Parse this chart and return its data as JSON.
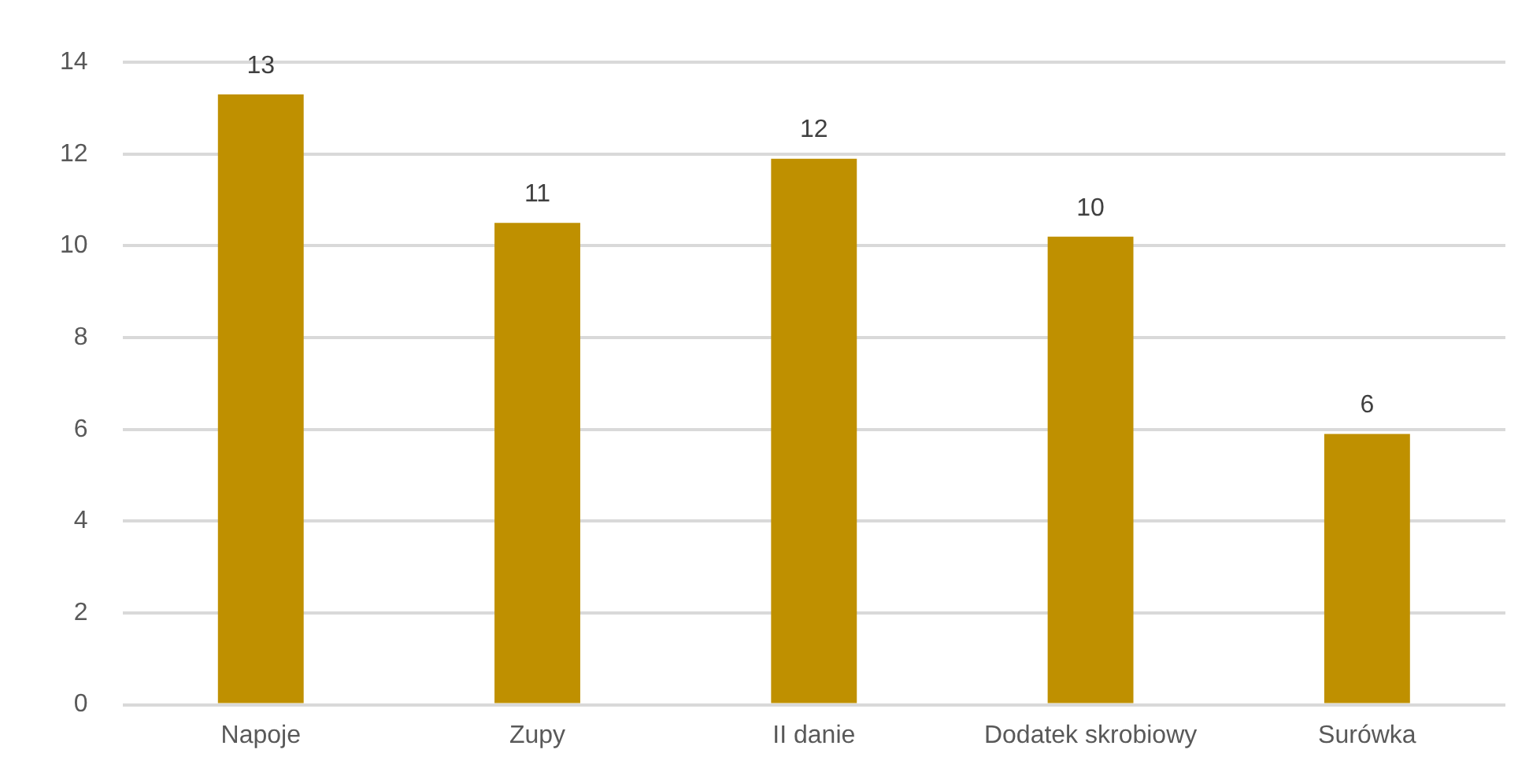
{
  "chart_data": {
    "type": "bar",
    "categories": [
      "Napoje",
      "Zupy",
      "II danie",
      "Dodatek skrobiowy",
      "Surówka"
    ],
    "values": [
      13.3,
      10.5,
      11.9,
      10.2,
      5.9
    ],
    "value_labels": [
      "13",
      "11",
      "12",
      "10",
      "6"
    ],
    "color": "#bf9000",
    "ylim": [
      0,
      14
    ],
    "yticks": [
      0,
      2,
      4,
      6,
      8,
      10,
      12,
      14
    ],
    "grid": "y",
    "legend": false
  }
}
